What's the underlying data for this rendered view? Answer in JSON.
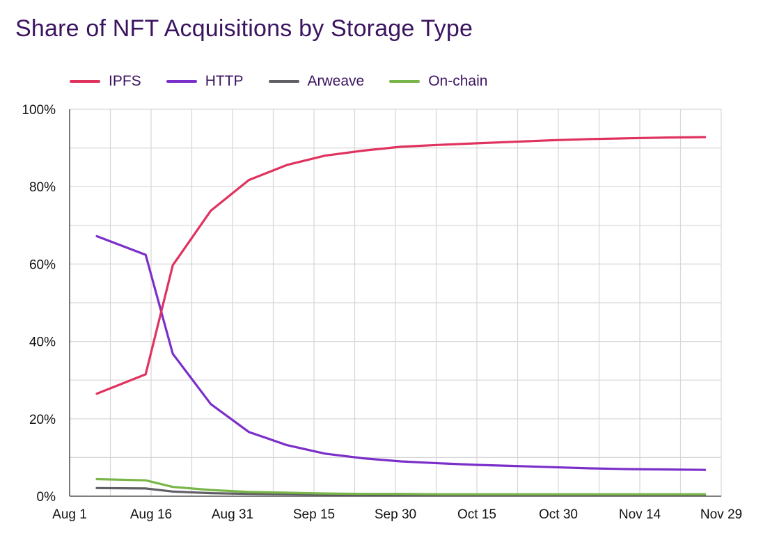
{
  "title": "Share of NFT Acquisitions by Storage Type",
  "chart_data": {
    "type": "line",
    "title": "Share of NFT Acquisitions by Storage Type",
    "xlabel": "",
    "ylabel": "",
    "x_tick_labels": [
      "Aug 1",
      "Aug 16",
      "Aug 31",
      "Sep 15",
      "Sep 30",
      "Oct 15",
      "Oct 30",
      "Nov 14",
      "Nov 29"
    ],
    "y_tick_labels": [
      "0%",
      "20%",
      "40%",
      "60%",
      "80%",
      "100%"
    ],
    "xlim": [
      "2021-08-01",
      "2021-11-29"
    ],
    "ylim": [
      0,
      100
    ],
    "grid": true,
    "legend_position": "top-left",
    "x": [
      "2021-08-06",
      "2021-08-15",
      "2021-08-20",
      "2021-08-27",
      "2021-09-03",
      "2021-09-10",
      "2021-09-17",
      "2021-09-24",
      "2021-10-01",
      "2021-10-08",
      "2021-10-15",
      "2021-10-22",
      "2021-10-29",
      "2021-11-05",
      "2021-11-12",
      "2021-11-19",
      "2021-11-26"
    ],
    "series": [
      {
        "name": "IPFS",
        "color": "#e0325f",
        "values": [
          26.5,
          31.5,
          59.7,
          73.8,
          81.7,
          85.6,
          88.0,
          89.3,
          90.3,
          90.8,
          91.2,
          91.6,
          92.0,
          92.3,
          92.5,
          92.7,
          92.8
        ]
      },
      {
        "name": "HTTP",
        "color": "#7b2fc9",
        "values": [
          67.2,
          62.4,
          36.8,
          23.8,
          16.6,
          13.2,
          11.0,
          9.8,
          9.0,
          8.5,
          8.1,
          7.8,
          7.5,
          7.2,
          7.0,
          6.9,
          6.8
        ]
      },
      {
        "name": "Arweave",
        "color": "#5f5f65",
        "values": [
          2.1,
          2.0,
          1.2,
          0.8,
          0.6,
          0.5,
          0.4,
          0.4,
          0.3,
          0.3,
          0.3,
          0.3,
          0.3,
          0.3,
          0.3,
          0.3,
          0.3
        ]
      },
      {
        "name": "On-chain",
        "color": "#79b548",
        "values": [
          4.4,
          4.1,
          2.4,
          1.6,
          1.1,
          0.9,
          0.7,
          0.6,
          0.6,
          0.5,
          0.5,
          0.5,
          0.5,
          0.5,
          0.5,
          0.5,
          0.5
        ]
      }
    ]
  }
}
